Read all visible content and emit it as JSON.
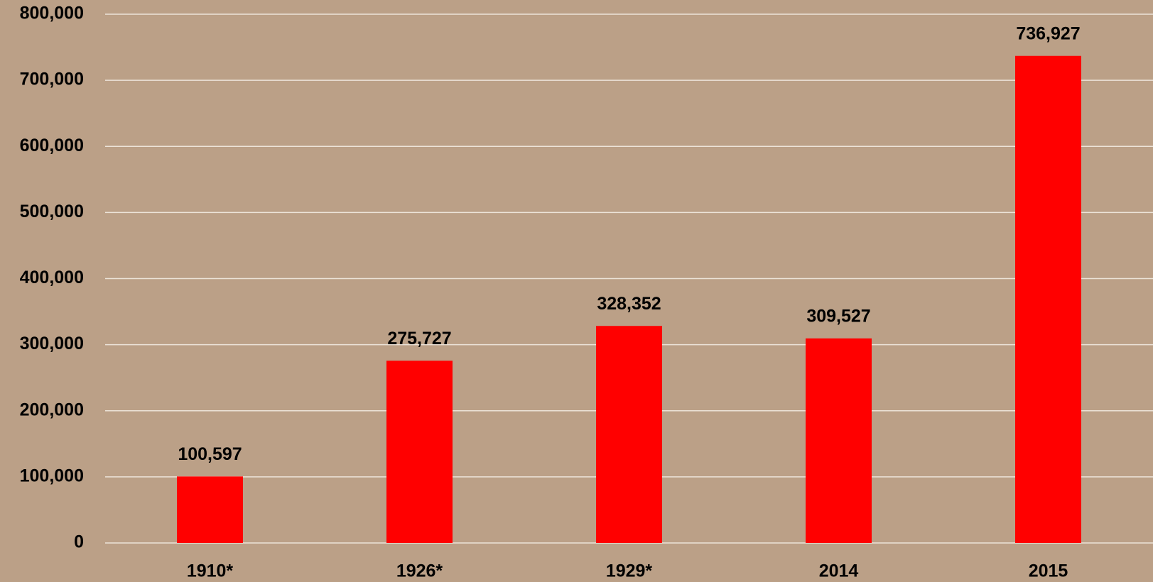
{
  "chart_data": {
    "type": "bar",
    "categories": [
      "1910*",
      "1926*",
      "1929*",
      "2014",
      "2015"
    ],
    "values": [
      100597,
      275727,
      328352,
      309527,
      736927
    ],
    "value_labels": [
      "100,597",
      "275,727",
      "328,352",
      "309,527",
      "736,927"
    ],
    "color": "#ff0000",
    "ylim": [
      0,
      800000
    ],
    "yticks": [
      0,
      {
        "value": 100000,
        "label": "100,000"
      },
      {
        "value": 200000,
        "label": "200,000"
      },
      {
        "value": 300000,
        "label": "300,000"
      },
      {
        "value": 400000,
        "label": "400,000"
      },
      {
        "value": 500000,
        "label": "500,000"
      },
      {
        "value": 600000,
        "label": "600,000"
      },
      {
        "value": 700000,
        "label": "700,000"
      },
      {
        "value": 800000,
        "label": "800,000"
      }
    ],
    "grid": true
  }
}
